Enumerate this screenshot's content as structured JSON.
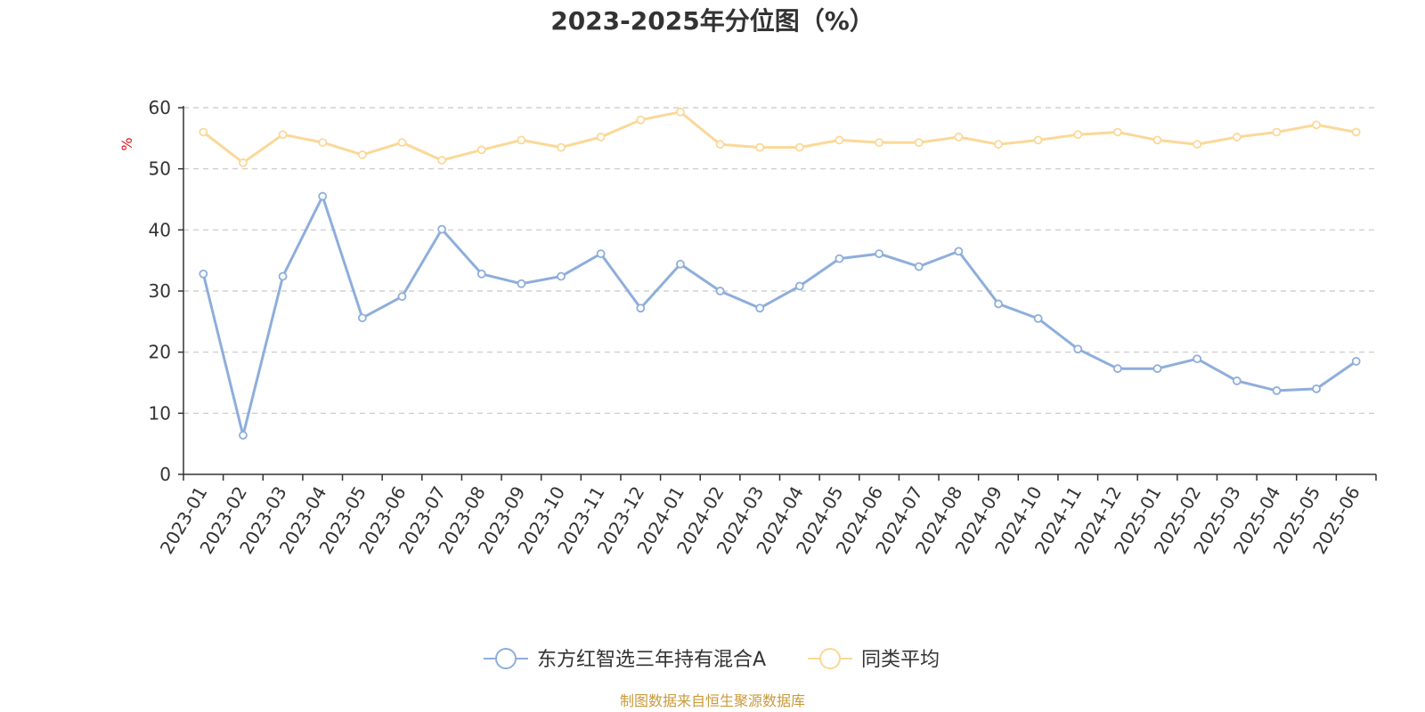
{
  "chart_data": {
    "type": "line",
    "title": "2023-2025年分位图（%）",
    "ylabel": "%",
    "ylim": [
      0,
      60
    ],
    "yticks": [
      0,
      10,
      20,
      30,
      40,
      50,
      60
    ],
    "grid": true,
    "legend_position": "bottom",
    "categories": [
      "2023-01",
      "2023-02",
      "2023-03",
      "2023-04",
      "2023-05",
      "2023-06",
      "2023-07",
      "2023-08",
      "2023-09",
      "2023-10",
      "2023-11",
      "2023-12",
      "2024-01",
      "2024-02",
      "2024-03",
      "2024-04",
      "2024-05",
      "2024-06",
      "2024-07",
      "2024-08",
      "2024-09",
      "2024-10",
      "2024-11",
      "2024-12",
      "2025-01",
      "2025-02",
      "2025-03",
      "2025-04",
      "2025-05",
      "2025-06"
    ],
    "series": [
      {
        "name": "东方红智选三年持有混合A",
        "color": "#8eaedb",
        "values": [
          32.8,
          6.4,
          32.4,
          45.5,
          25.6,
          29.1,
          40.1,
          32.8,
          31.2,
          32.4,
          36.1,
          27.2,
          34.4,
          30.0,
          27.2,
          30.8,
          35.3,
          36.1,
          34.0,
          36.5,
          27.9,
          25.5,
          20.5,
          17.3,
          17.3,
          18.9,
          15.3,
          13.7,
          14.0,
          18.5
        ]
      },
      {
        "name": "同类平均",
        "color": "#fbd898",
        "values": [
          56.0,
          51.0,
          55.6,
          54.3,
          52.3,
          54.3,
          51.4,
          53.1,
          54.7,
          53.5,
          55.2,
          58.0,
          59.3,
          54.0,
          53.5,
          53.5,
          54.7,
          54.3,
          54.3,
          55.2,
          54.0,
          54.7,
          55.6,
          56.0,
          54.7,
          54.0,
          55.2,
          56.0,
          57.2,
          56.0
        ]
      }
    ],
    "source": "制图数据来自恒生聚源数据库"
  },
  "colors": {
    "axis": "#333333",
    "grid": "#c8c8c8",
    "unit": "#e0131a",
    "source": "#c99a3a"
  }
}
